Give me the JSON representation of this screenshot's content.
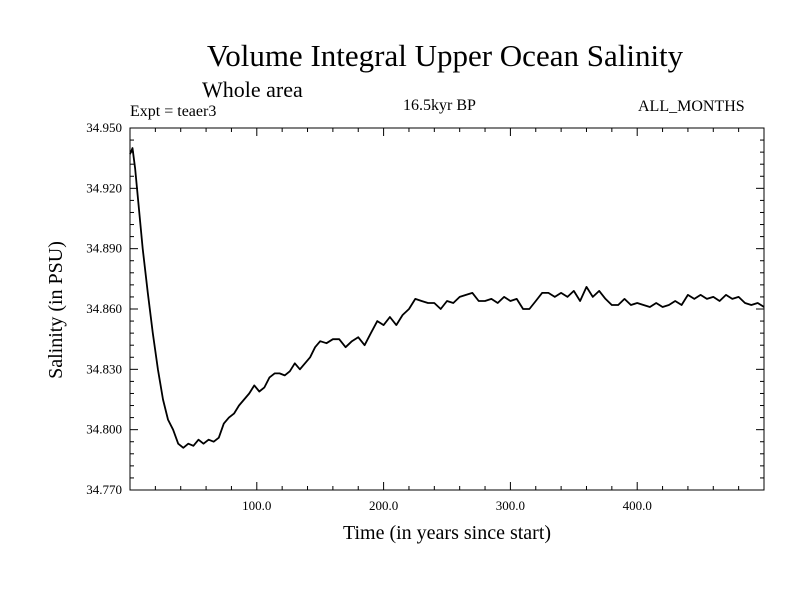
{
  "chart_data": {
    "type": "line",
    "title": "Volume Integral Upper Ocean Salinity",
    "subtitle": "Whole area",
    "experiment": "Expt = teaer3",
    "period": "16.5kyr BP",
    "months": "ALL_MONTHS",
    "xlabel": "Time (in years since start)",
    "ylabel": "Salinity (in PSU)",
    "xlim": [
      0,
      500
    ],
    "ylim": [
      34.77,
      34.95
    ],
    "x_ticks": [
      100,
      200,
      300,
      400
    ],
    "x_tick_labels": [
      "100.0",
      "200.0",
      "300.0",
      "400.0"
    ],
    "y_ticks": [
      34.77,
      34.8,
      34.83,
      34.86,
      34.89,
      34.92,
      34.95
    ],
    "y_tick_labels": [
      "34.770",
      "34.800",
      "34.830",
      "34.860",
      "34.890",
      "34.920",
      "34.950"
    ],
    "grid": false,
    "series": [
      {
        "name": "salinity",
        "x": [
          0,
          2,
          4,
          7,
          10,
          14,
          18,
          22,
          26,
          30,
          34,
          38,
          42,
          46,
          50,
          54,
          58,
          62,
          66,
          70,
          74,
          78,
          82,
          86,
          90,
          94,
          98,
          102,
          106,
          110,
          114,
          118,
          122,
          126,
          130,
          134,
          138,
          142,
          146,
          150,
          155,
          160,
          165,
          170,
          175,
          180,
          185,
          190,
          195,
          200,
          205,
          210,
          215,
          220,
          225,
          230,
          235,
          240,
          245,
          250,
          255,
          260,
          265,
          270,
          275,
          280,
          285,
          290,
          295,
          300,
          305,
          310,
          315,
          320,
          325,
          330,
          335,
          340,
          345,
          350,
          355,
          360,
          365,
          370,
          375,
          380,
          385,
          390,
          395,
          400,
          405,
          410,
          415,
          420,
          425,
          430,
          435,
          440,
          445,
          450,
          455,
          460,
          465,
          470,
          475,
          480,
          485,
          490,
          495,
          500
        ],
        "y": [
          34.937,
          34.94,
          34.93,
          34.91,
          34.89,
          34.868,
          34.848,
          34.83,
          34.815,
          34.805,
          34.8,
          34.793,
          34.791,
          34.793,
          34.792,
          34.795,
          34.793,
          34.795,
          34.794,
          34.796,
          34.803,
          34.806,
          34.808,
          34.812,
          34.815,
          34.818,
          34.822,
          34.819,
          34.821,
          34.826,
          34.828,
          34.828,
          34.827,
          34.829,
          34.833,
          34.83,
          34.833,
          34.836,
          34.841,
          34.844,
          34.843,
          34.845,
          34.845,
          34.841,
          34.844,
          34.846,
          34.842,
          34.848,
          34.854,
          34.852,
          34.856,
          34.852,
          34.857,
          34.86,
          34.865,
          34.864,
          34.863,
          34.863,
          34.86,
          34.864,
          34.863,
          34.866,
          34.867,
          34.868,
          34.864,
          34.864,
          34.865,
          34.863,
          34.866,
          34.864,
          34.865,
          34.86,
          34.86,
          34.864,
          34.868,
          34.868,
          34.866,
          34.868,
          34.866,
          34.869,
          34.864,
          34.871,
          34.866,
          34.869,
          34.865,
          34.862,
          34.862,
          34.865,
          34.862,
          34.863,
          34.862,
          34.861,
          34.863,
          34.861,
          34.862,
          34.864,
          34.862,
          34.867,
          34.865,
          34.867,
          34.865,
          34.866,
          34.864,
          34.867,
          34.865,
          34.866,
          34.863,
          34.862,
          34.863,
          34.861
        ]
      }
    ]
  }
}
